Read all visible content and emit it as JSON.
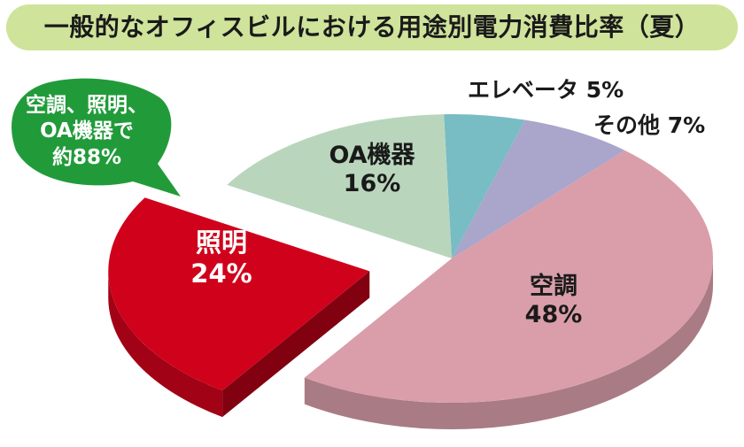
{
  "colors": {
    "aircon": "#d99eaa",
    "lighting": "#d0021b",
    "oa": "#b9d6bd",
    "elevator": "#78bcc4",
    "other": "#a9a5cb",
    "callout": "#219b3a",
    "title_bg": "#cfe39b"
  },
  "chart_data": {
    "type": "pie",
    "title": "一般的なオフィスビルにおける用途別電力消費比率（夏）",
    "slices": [
      {
        "name": "空調",
        "value": 48,
        "label": "48%"
      },
      {
        "name": "照明",
        "value": 24,
        "label": "24%",
        "exploded": true
      },
      {
        "name": "OA機器",
        "value": 16,
        "label": "16%"
      },
      {
        "name": "エレベータ",
        "value": 5,
        "label": "5%"
      },
      {
        "name": "その他",
        "value": 7,
        "label": "7%"
      }
    ],
    "callout": {
      "lines": [
        "空調、照明、",
        "OA機器で",
        "約88%"
      ]
    }
  }
}
